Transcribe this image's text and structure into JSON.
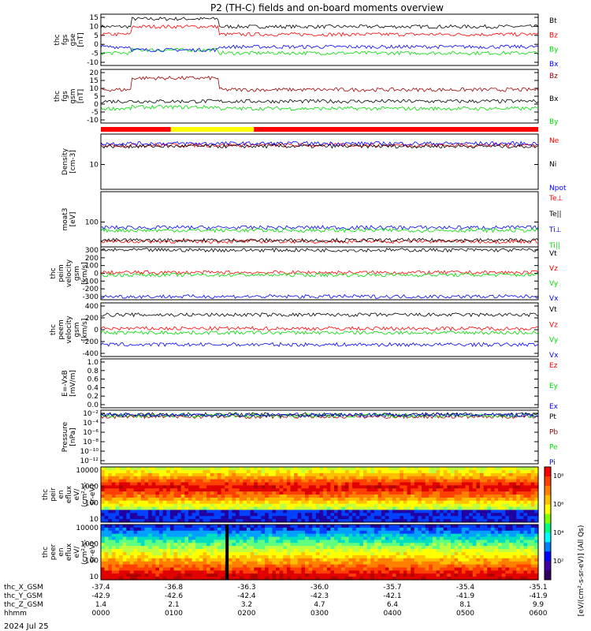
{
  "title": "P2 (TH-C) fields and on-board moments overview",
  "date_label": "2024 Jul 25",
  "colors": {
    "black": "#000000",
    "red": "#ff0000",
    "darkred": "#a00000",
    "green": "#00dd00",
    "blue": "#0000ff",
    "yellow": "#ffff00"
  },
  "mode_bar": {
    "segments": [
      {
        "from": 0.0,
        "to": 0.16,
        "color": "#ff0000"
      },
      {
        "from": 0.16,
        "to": 0.35,
        "color": "#ffff00"
      },
      {
        "from": 0.35,
        "to": 1.0,
        "color": "#ff0000"
      }
    ]
  },
  "xaxis": {
    "rows": [
      {
        "name": "thc_X_GSM",
        "values": [
          "-37.4",
          "-36.8",
          "-36.3",
          "-36.0",
          "-35.7",
          "-35.4",
          "-35.1"
        ]
      },
      {
        "name": "thc_Y_GSM",
        "values": [
          "-42.9",
          "-42.6",
          "-42.4",
          "-42.3",
          "-42.1",
          "-41.9",
          "-41.9"
        ]
      },
      {
        "name": "thc_Z_GSM",
        "values": [
          "1.4",
          "2.1",
          "3.2",
          "4.7",
          "6.4",
          "8.1",
          "9.9"
        ]
      },
      {
        "name": "hhmm",
        "values": [
          "0000",
          "0100",
          "0200",
          "0300",
          "0400",
          "0500",
          "0600"
        ]
      }
    ]
  },
  "chart_data": [
    {
      "type": "line",
      "ylabel": [
        "thc",
        "fgs",
        "gse",
        "[nT]"
      ],
      "yticks": [
        "15",
        "10",
        "5",
        "0",
        "-5",
        "-10"
      ],
      "ylim": [
        -15,
        18
      ],
      "series": [
        {
          "name": "Bt",
          "color": "#000000",
          "level": 10,
          "jump": 15
        },
        {
          "name": "Bz",
          "color": "#ff0000",
          "level": 5,
          "jump": 10
        },
        {
          "name": "By",
          "color": "#00dd00",
          "level": -7,
          "jump": -5
        },
        {
          "name": "Bx",
          "color": "#0000ff",
          "level": -3,
          "jump": -5
        }
      ]
    },
    {
      "type": "line",
      "ylabel": [
        "thc",
        "fgs",
        "gsm",
        "[nT]"
      ],
      "yticks": [
        "20",
        "15",
        "10",
        "5",
        "0",
        "-5",
        "-10"
      ],
      "ylim": [
        -15,
        22
      ],
      "series": [
        {
          "name": "Bz",
          "color": "#a00000",
          "level": 8,
          "jump": 16
        },
        {
          "name": "Bx",
          "color": "#000000",
          "level": 0,
          "jump": 0
        },
        {
          "name": "By",
          "color": "#00dd00",
          "level": -5,
          "jump": -4
        }
      ]
    },
    {
      "type": "line",
      "ylabel": [
        "Density",
        "[cm-3]"
      ],
      "yticks": [
        "10"
      ],
      "ylim": [
        0,
        1
      ],
      "series": [
        {
          "name": "Ne",
          "color": "#ff0000",
          "level": 0.8
        },
        {
          "name": "Ni",
          "color": "#000000",
          "level": 0.78
        },
        {
          "name": "Npot",
          "color": "#0000ff",
          "level": 0.83
        }
      ]
    },
    {
      "type": "line",
      "ylabel": [
        "moat3",
        "[eV]"
      ],
      "yticks": [
        "100"
      ],
      "ylim": [
        0,
        1
      ],
      "series": [
        {
          "name": "Te⊥",
          "color": "#ff0000",
          "level": 0.1
        },
        {
          "name": "Te||",
          "color": "#000000",
          "level": 0.12
        },
        {
          "name": "Ti⊥",
          "color": "#0000ff",
          "level": 0.35
        },
        {
          "name": "Ti||",
          "color": "#00dd00",
          "level": 0.3
        }
      ]
    },
    {
      "type": "line",
      "ylabel": [
        "thc",
        "peim",
        "velocity",
        "gsm",
        "[km/s]"
      ],
      "yticks": [
        "300",
        "200",
        "100",
        "0",
        "-100",
        "-200",
        "-300"
      ],
      "ylim": [
        -330,
        330
      ],
      "series": [
        {
          "name": "Vt",
          "color": "#000000",
          "level": 290
        },
        {
          "name": "Vz",
          "color": "#ff0000",
          "level": 10
        },
        {
          "name": "Vy",
          "color": "#00dd00",
          "level": -20
        },
        {
          "name": "Vx",
          "color": "#0000ff",
          "level": -290
        }
      ]
    },
    {
      "type": "line",
      "ylabel": [
        "thc",
        "peem",
        "velocity",
        "gsm",
        "[km/s]"
      ],
      "yticks": [
        "400",
        "200",
        "0",
        "-200",
        "-400"
      ],
      "ylim": [
        -450,
        450
      ],
      "series": [
        {
          "name": "Vt",
          "color": "#000000",
          "level": 250
        },
        {
          "name": "Vz",
          "color": "#ff0000",
          "level": 20
        },
        {
          "name": "Vy",
          "color": "#00dd00",
          "level": -50
        },
        {
          "name": "Vx",
          "color": "#0000ff",
          "level": -250
        }
      ]
    },
    {
      "type": "line",
      "ylabel": [
        "E=-VxB",
        "[mV/m]"
      ],
      "yticks": [
        "1.0",
        "0.8",
        "0.6",
        "0.4",
        "0.2",
        "0.0"
      ],
      "ylim": [
        0,
        1
      ],
      "series": [
        {
          "name": "Ez",
          "color": "#ff0000"
        },
        {
          "name": "Ey",
          "color": "#00dd00"
        },
        {
          "name": "Ex",
          "color": "#0000ff"
        }
      ]
    },
    {
      "type": "line",
      "ylabel": [
        "Pressure",
        "[nPa]"
      ],
      "yticks": [
        "10⁻²",
        "10⁻⁴",
        "10⁻⁶",
        "10⁻⁸",
        "10⁻¹⁰",
        "10⁻¹²"
      ],
      "ylim": [
        0,
        1
      ],
      "series": [
        {
          "name": "Pt",
          "color": "#000000",
          "level": 0.92
        },
        {
          "name": "Pb",
          "color": "#a00000",
          "level": 0.88
        },
        {
          "name": "Pe",
          "color": "#00dd00",
          "level": 0.9
        },
        {
          "name": "Pi",
          "color": "#0000ff",
          "level": 0.91
        }
      ]
    },
    {
      "type": "heatmap",
      "ylabel": [
        "thc",
        "peir",
        "en",
        "eflux",
        "eV/",
        "(cm²-s-",
        "sr-eV)"
      ],
      "yticks": [
        "10000",
        "1000",
        "100",
        "10"
      ]
    },
    {
      "type": "heatmap",
      "ylabel": [
        "thc",
        "peer",
        "en",
        "eflux",
        "eV/",
        "(cm²-s-",
        "sr-eV)"
      ],
      "yticks": [
        "10000",
        "1000",
        "100",
        "10"
      ]
    }
  ],
  "colorbar": {
    "ticks": [
      "10⁸",
      "10⁶",
      "10⁴",
      "10²"
    ],
    "label": "[eV/(cm²-s-sr-eV)] (All Qs)"
  }
}
